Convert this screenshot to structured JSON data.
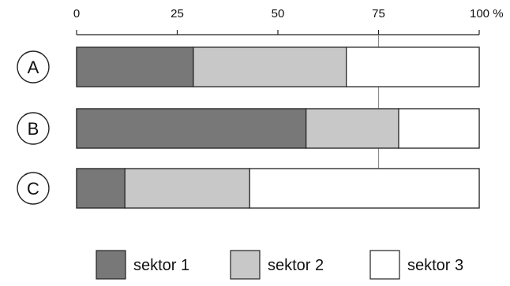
{
  "chart_data": {
    "type": "bar",
    "orientation": "horizontal",
    "stacked": true,
    "percent": true,
    "categories": [
      "A",
      "B",
      "C"
    ],
    "series": [
      {
        "name": "sektor 1",
        "values": [
          29,
          57,
          12
        ]
      },
      {
        "name": "sektor 2",
        "values": [
          38,
          23,
          31
        ]
      },
      {
        "name": "sektor 3",
        "values": [
          33,
          20,
          57
        ]
      }
    ],
    "x_ticks": [
      "0",
      "25",
      "50",
      "75",
      "100 %"
    ],
    "xlim": [
      0,
      100
    ],
    "reference_line": 75,
    "title": "",
    "xlabel": "",
    "ylabel": "",
    "grid": false,
    "legend_position": "bottom"
  },
  "colors": {
    "sektor 1": "#787878",
    "sektor 2": "#c8c8c8",
    "sektor 3": "#ffffff",
    "stroke": "#222222",
    "reference_line": "#8c8c8c"
  }
}
